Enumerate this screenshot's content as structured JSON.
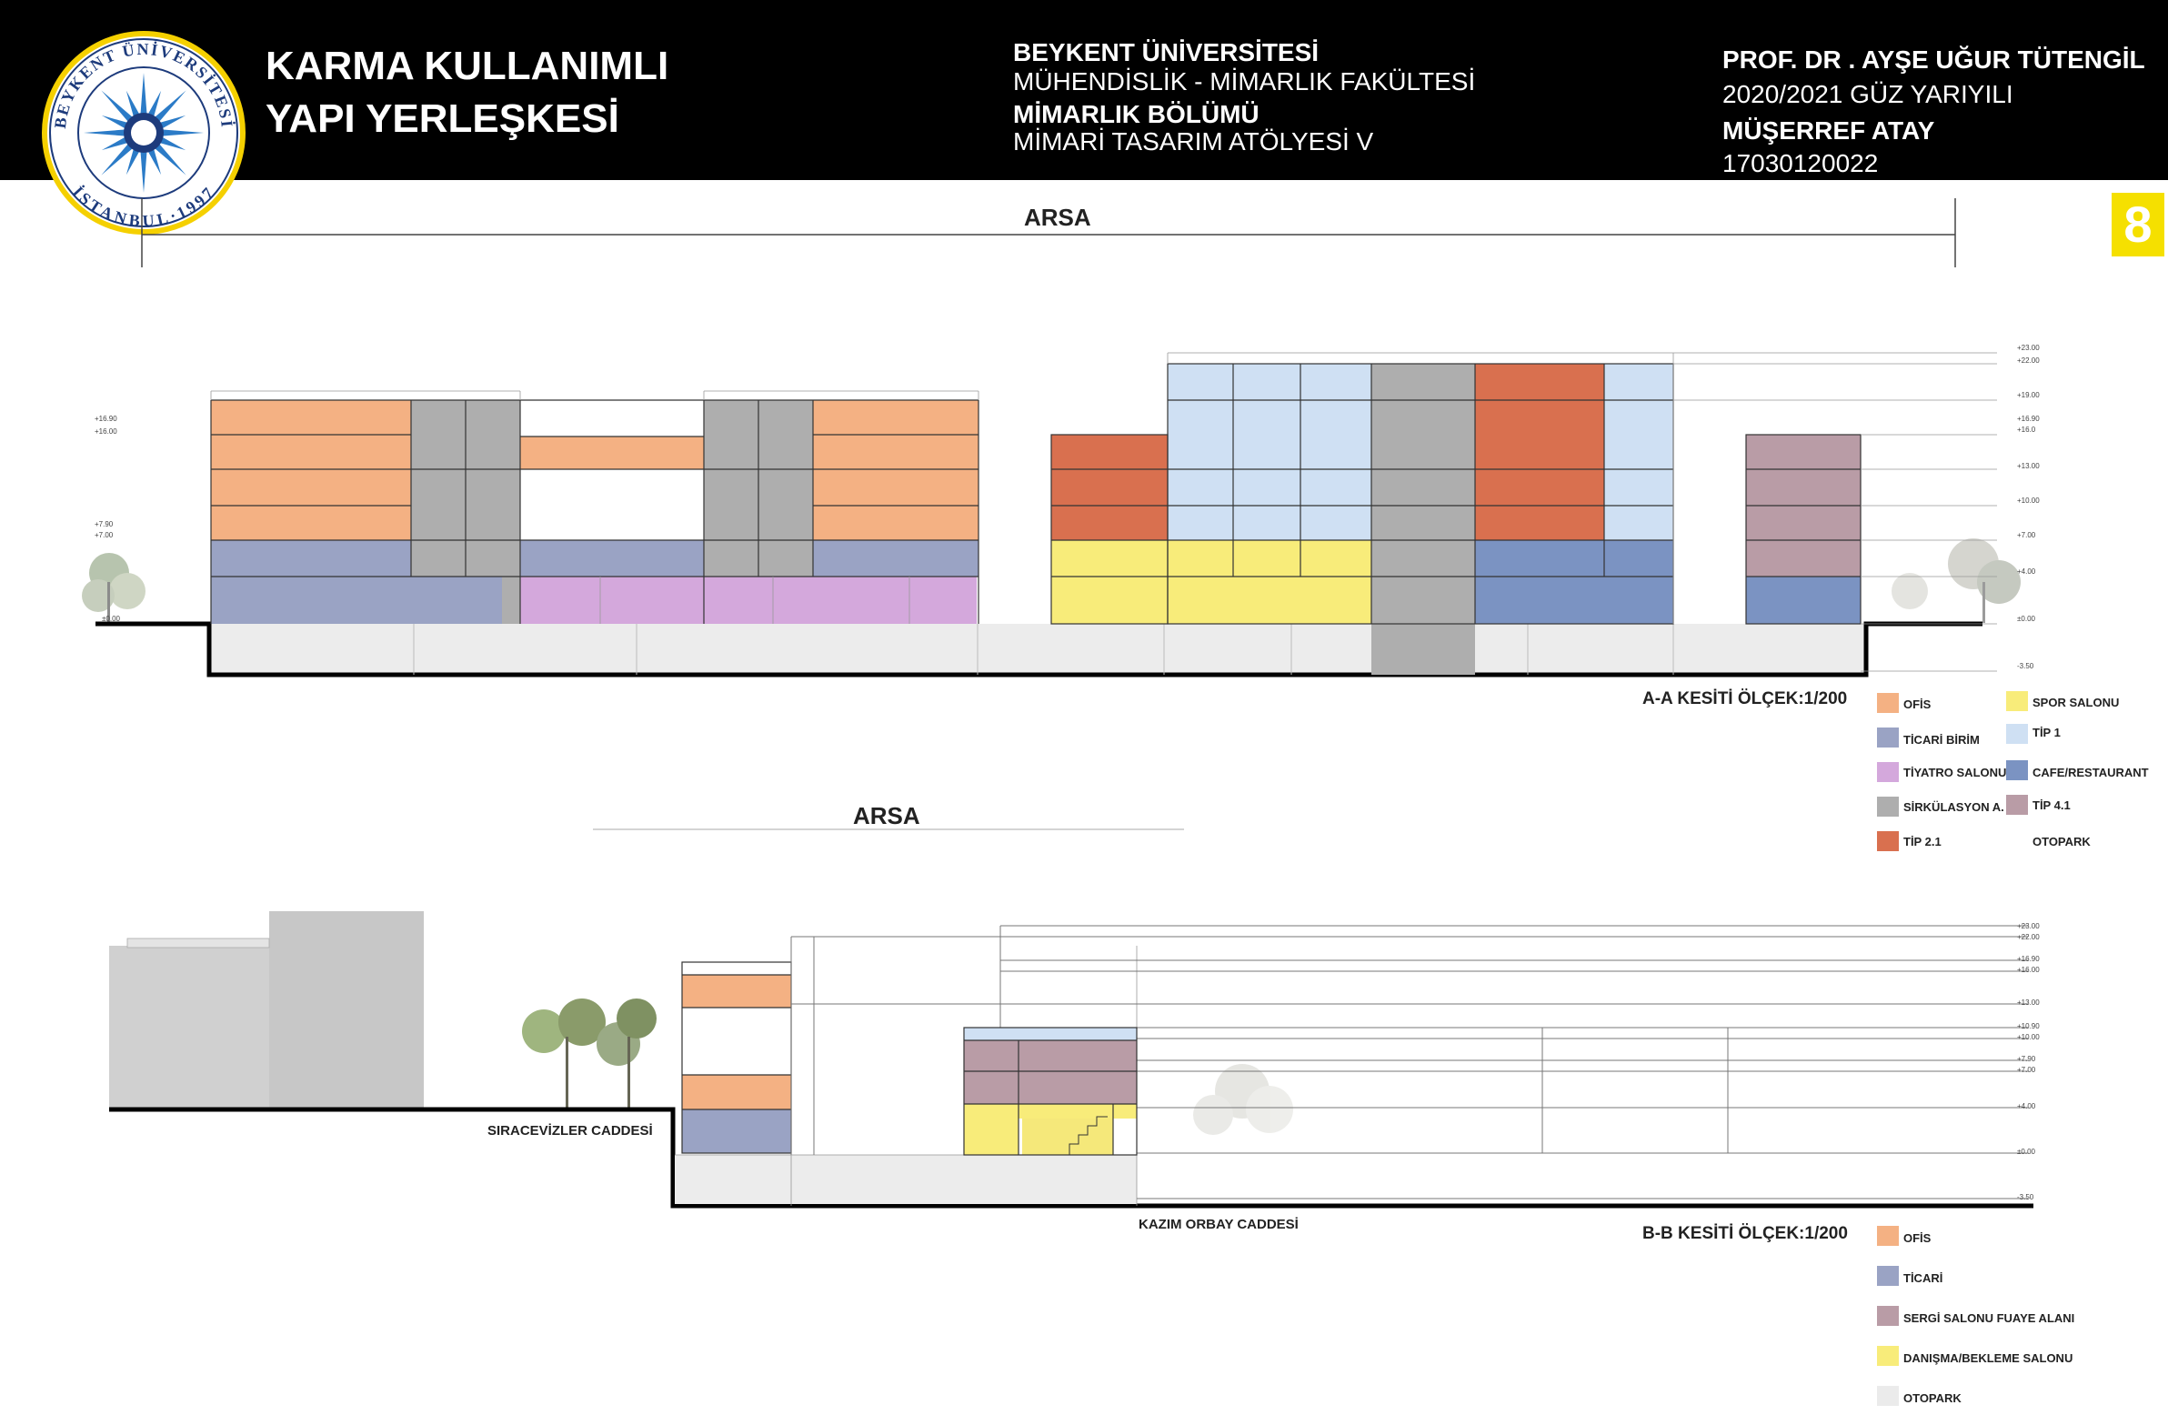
{
  "header": {
    "project_title_line1": "KARMA KULLANIMLI",
    "project_title_line2": "YAPI YERLEŞKESİ",
    "university": "BEYKENT ÜNİVERSİTESİ",
    "faculty": "MÜHENDİSLİK - MİMARLIK FAKÜLTESİ",
    "department": "MİMARLIK BÖLÜMÜ",
    "course": "MİMARİ TASARIM ATÖLYESİ V",
    "instructor": "PROF. DR . AYŞE UĞUR TÜTENGİL",
    "semester": "2020/2021 GÜZ YARIYILI",
    "student": "MÜŞERREF ATAY",
    "student_no": "17030120022",
    "page_number": "8"
  },
  "logo": {
    "top_text": "BEYKENT ÜNİVERSİTESİ",
    "bottom_text": "İSTANBUL·1997"
  },
  "colors": {
    "ofis": "#f4b183",
    "ticari": "#9aa3c4",
    "tiyatro": "#d4a8dc",
    "sirkulasyon": "#aeaeae",
    "tip21": "#d9704f",
    "spor": "#f8ec7a",
    "tip1": "#cfe0f3",
    "cafe": "#7b93c2",
    "tip41": "#b99ca6",
    "otopark": "#ebebeb"
  },
  "section_aa": {
    "site_label": "ARSA",
    "title": "A-A KESİTİ ÖLÇEK:1/200",
    "levels_left": [
      "+16.90",
      "+16.00",
      "+7.90",
      "+7.00",
      "±0.00"
    ],
    "levels_right": [
      "+23.00",
      "+22.00",
      "+19.00",
      "+16.90",
      "+16.0",
      "+13.00",
      "+10.00",
      "+7.00",
      "+4.00",
      "±0.00",
      "-3.50"
    ],
    "legend": [
      {
        "label": "OFİS",
        "color": "#f4b183"
      },
      {
        "label": "TİCARİ BİRİM",
        "color": "#9aa3c4"
      },
      {
        "label": "TİYATRO SALONU",
        "color": "#d4a8dc"
      },
      {
        "label": "SİRKÜLASYON A.",
        "color": "#aeaeae"
      },
      {
        "label": "TİP 2.1",
        "color": "#d9704f"
      },
      {
        "label": "SPOR SALONU",
        "color": "#f8ec7a"
      },
      {
        "label": "TİP 1",
        "color": "#cfe0f3"
      },
      {
        "label": "CAFE/RESTAURANT",
        "color": "#7b93c2"
      },
      {
        "label": "TİP 4.1",
        "color": "#b99ca6"
      },
      {
        "label": "OTOPARK",
        "color": "#ffffff"
      }
    ]
  },
  "section_bb": {
    "site_label": "ARSA",
    "title": "B-B KESİTİ ÖLÇEK:1/200",
    "street_left": "SIRACEVİZLER CADDESİ",
    "street_bottom": "KAZIM ORBAY CADDESİ",
    "levels": [
      "+23.00",
      "+22.00",
      "+16.90",
      "+16.00",
      "+13.00",
      "+10.90",
      "+10.00",
      "+7.90",
      "+7.00",
      "+4.00",
      "±0.00",
      "-3.50"
    ],
    "legend": [
      {
        "label": "OFİS",
        "color": "#f4b183"
      },
      {
        "label": "TİCARİ",
        "color": "#9aa3c4"
      },
      {
        "label": "SERGİ SALONU FUAYE ALANI",
        "color": "#b99ca6"
      },
      {
        "label": "DANIŞMA/BEKLEME SALONU",
        "color": "#f8ec7a"
      },
      {
        "label": "OTOPARK",
        "color": "#ebebeb"
      }
    ]
  }
}
